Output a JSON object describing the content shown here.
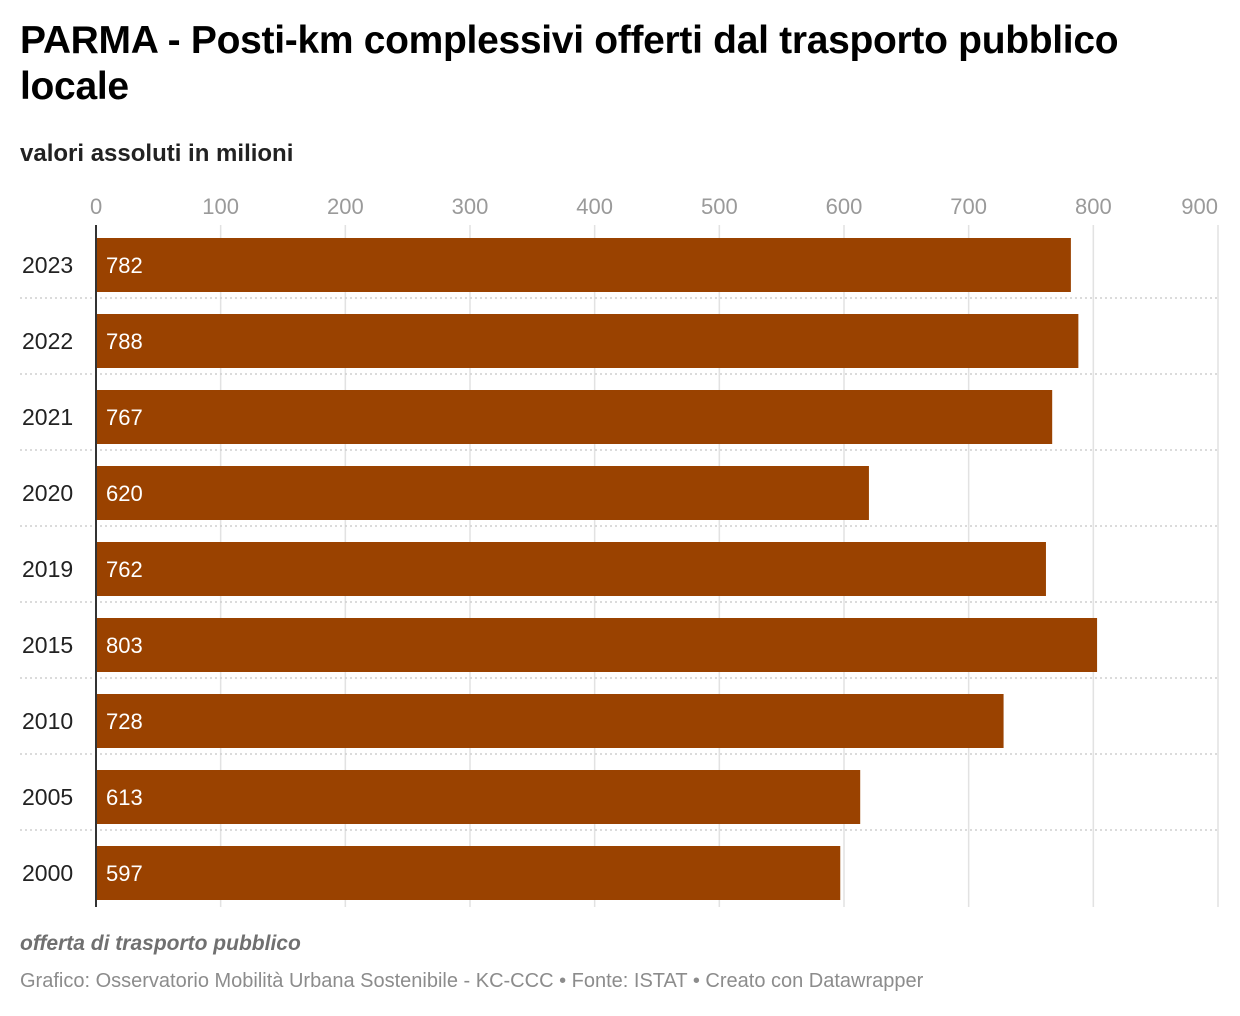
{
  "header": {
    "title": "PARMA - Posti-km complessivi offerti dal trasporto pubblico locale",
    "subtitle": "valori assoluti in milioni"
  },
  "footer": {
    "notes": "offerta di trasporto pubblico",
    "credit": "Grafico: Osservatorio Mobilità Urbana Sostenibile - KC-CCC",
    "separator": "•",
    "source": "Fonte: ISTAT",
    "made_with": "Creato con Datawrapper"
  },
  "colors": {
    "bar": "#9a4200",
    "grid": "#e2e2e2",
    "tick_text": "#9a9a9a",
    "label_text": "#222222",
    "value_text": "#ffffff"
  },
  "chart_data": {
    "type": "bar",
    "orientation": "horizontal",
    "title": "PARMA - Posti-km complessivi offerti dal trasporto pubblico locale",
    "subtitle": "valori assoluti in milioni",
    "categories": [
      "2023",
      "2022",
      "2021",
      "2020",
      "2019",
      "2015",
      "2010",
      "2005",
      "2000"
    ],
    "values": [
      782,
      788,
      767,
      620,
      762,
      803,
      728,
      613,
      597
    ],
    "value_labels": [
      "782",
      "788",
      "767",
      "620",
      "762",
      "803",
      "728",
      "613",
      "597"
    ],
    "xlim": [
      0,
      900
    ],
    "xticks": [
      0,
      100,
      200,
      300,
      400,
      500,
      600,
      700,
      800,
      900
    ],
    "xtick_labels": [
      "0",
      "100",
      "200",
      "300",
      "400",
      "500",
      "600",
      "700",
      "800",
      "900"
    ],
    "xaxis_position": "top",
    "grid": true
  }
}
